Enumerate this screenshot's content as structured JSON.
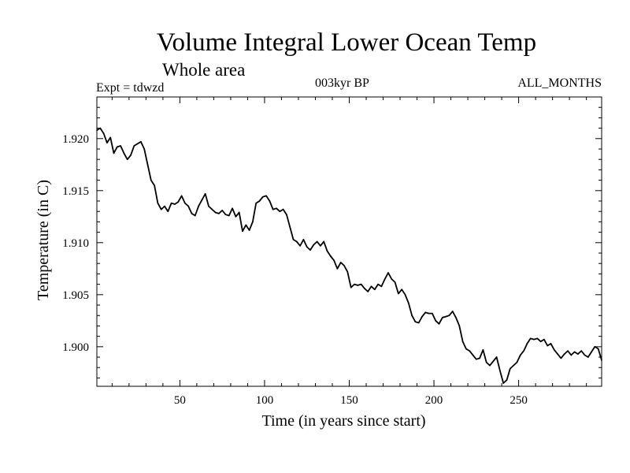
{
  "header": {
    "title": "Volume Integral Lower Ocean Temp",
    "subtitle": "Whole area",
    "expt": "Expt = tdwzd",
    "period": "003kyr BP",
    "months": "ALL_MONTHS"
  },
  "chart_data": {
    "type": "line",
    "title": "Volume Integral Lower Ocean Temp",
    "subtitle": "Whole area",
    "xlabel": "Time (in years since start)",
    "ylabel": "Temperature (in C)",
    "xlim": [
      1,
      299
    ],
    "ylim": [
      1.8962,
      1.924
    ],
    "xticks": [
      50,
      100,
      150,
      200,
      250
    ],
    "xtick_labels": [
      "50",
      "100",
      "150",
      "200",
      "250"
    ],
    "yticks": [
      1.9,
      1.905,
      1.91,
      1.915,
      1.92
    ],
    "ytick_labels": [
      "1.900",
      "1.905",
      "1.910",
      "1.915",
      "1.920"
    ],
    "grid": false,
    "series": [
      {
        "name": "",
        "x": [
          1,
          3,
          5,
          7,
          9,
          11,
          13,
          15,
          17,
          19,
          21,
          23,
          25,
          27,
          29,
          31,
          33,
          35,
          37,
          39,
          41,
          43,
          45,
          47,
          49,
          51,
          53,
          55,
          57,
          59,
          61,
          63,
          65,
          67,
          69,
          71,
          73,
          75,
          77,
          79,
          81,
          83,
          85,
          87,
          89,
          91,
          93,
          95,
          97,
          99,
          101,
          103,
          105,
          107,
          109,
          111,
          113,
          115,
          117,
          119,
          121,
          123,
          125,
          127,
          129,
          131,
          133,
          135,
          137,
          139,
          141,
          143,
          145,
          147,
          149,
          151,
          153,
          155,
          157,
          159,
          161,
          163,
          165,
          167,
          169,
          171,
          173,
          175,
          177,
          179,
          181,
          183,
          185,
          187,
          189,
          191,
          193,
          195,
          197,
          199,
          201,
          203,
          205,
          207,
          209,
          211,
          213,
          215,
          217,
          219,
          221,
          223,
          225,
          227,
          229,
          231,
          233,
          235,
          237,
          239,
          241,
          243,
          245,
          247,
          249,
          251,
          253,
          255,
          257,
          259,
          261,
          263,
          265,
          267,
          269,
          271,
          273,
          275,
          277,
          279,
          281,
          283,
          285,
          287,
          289,
          291,
          293,
          295,
          297,
          299
        ],
        "values": [
          1.9208,
          1.921,
          1.9205,
          1.9196,
          1.9201,
          1.9186,
          1.9192,
          1.9193,
          1.9186,
          1.918,
          1.9184,
          1.9193,
          1.9195,
          1.9197,
          1.919,
          1.9175,
          1.916,
          1.9155,
          1.9138,
          1.9132,
          1.9135,
          1.913,
          1.9138,
          1.9137,
          1.9139,
          1.9145,
          1.9138,
          1.9135,
          1.9128,
          1.9126,
          1.9135,
          1.9141,
          1.9147,
          1.9135,
          1.9132,
          1.9129,
          1.9128,
          1.9131,
          1.9127,
          1.9126,
          1.9133,
          1.9125,
          1.9129,
          1.9111,
          1.9117,
          1.9112,
          1.912,
          1.9138,
          1.914,
          1.9144,
          1.9145,
          1.914,
          1.9132,
          1.9133,
          1.913,
          1.9132,
          1.9127,
          1.9115,
          1.9103,
          1.9101,
          1.9097,
          1.9103,
          1.9096,
          1.9093,
          1.9098,
          1.9101,
          1.9097,
          1.9101,
          1.9092,
          1.9087,
          1.9083,
          1.9075,
          1.9081,
          1.9078,
          1.9072,
          1.9057,
          1.906,
          1.9059,
          1.906,
          1.9056,
          1.9053,
          1.9058,
          1.9055,
          1.906,
          1.9058,
          1.9065,
          1.9071,
          1.9065,
          1.9062,
          1.9051,
          1.9055,
          1.905,
          1.9042,
          1.903,
          1.9024,
          1.9023,
          1.9029,
          1.9033,
          1.9032,
          1.9032,
          1.9025,
          1.9022,
          1.9028,
          1.9029,
          1.903,
          1.9034,
          1.9028,
          1.902,
          1.9005,
          1.8998,
          1.8996,
          1.8992,
          1.8988,
          1.8989,
          1.8997,
          1.8985,
          1.8982,
          1.8986,
          1.899,
          1.8977,
          1.8965,
          1.8968,
          1.8979,
          1.8982,
          1.8985,
          1.8992,
          1.8996,
          1.9003,
          1.9008,
          1.9007,
          1.9008,
          1.9005,
          1.9007,
          1.9001,
          1.9003,
          1.8997,
          1.8993,
          1.8989,
          1.8993,
          1.8996,
          1.8992,
          1.8995,
          1.8993,
          1.8996,
          1.8992,
          1.899,
          1.8995,
          1.9,
          1.8998,
          1.8987
        ]
      }
    ]
  },
  "colors": {
    "line": "#000000",
    "axes": "#000000",
    "background": "#ffffff"
  }
}
